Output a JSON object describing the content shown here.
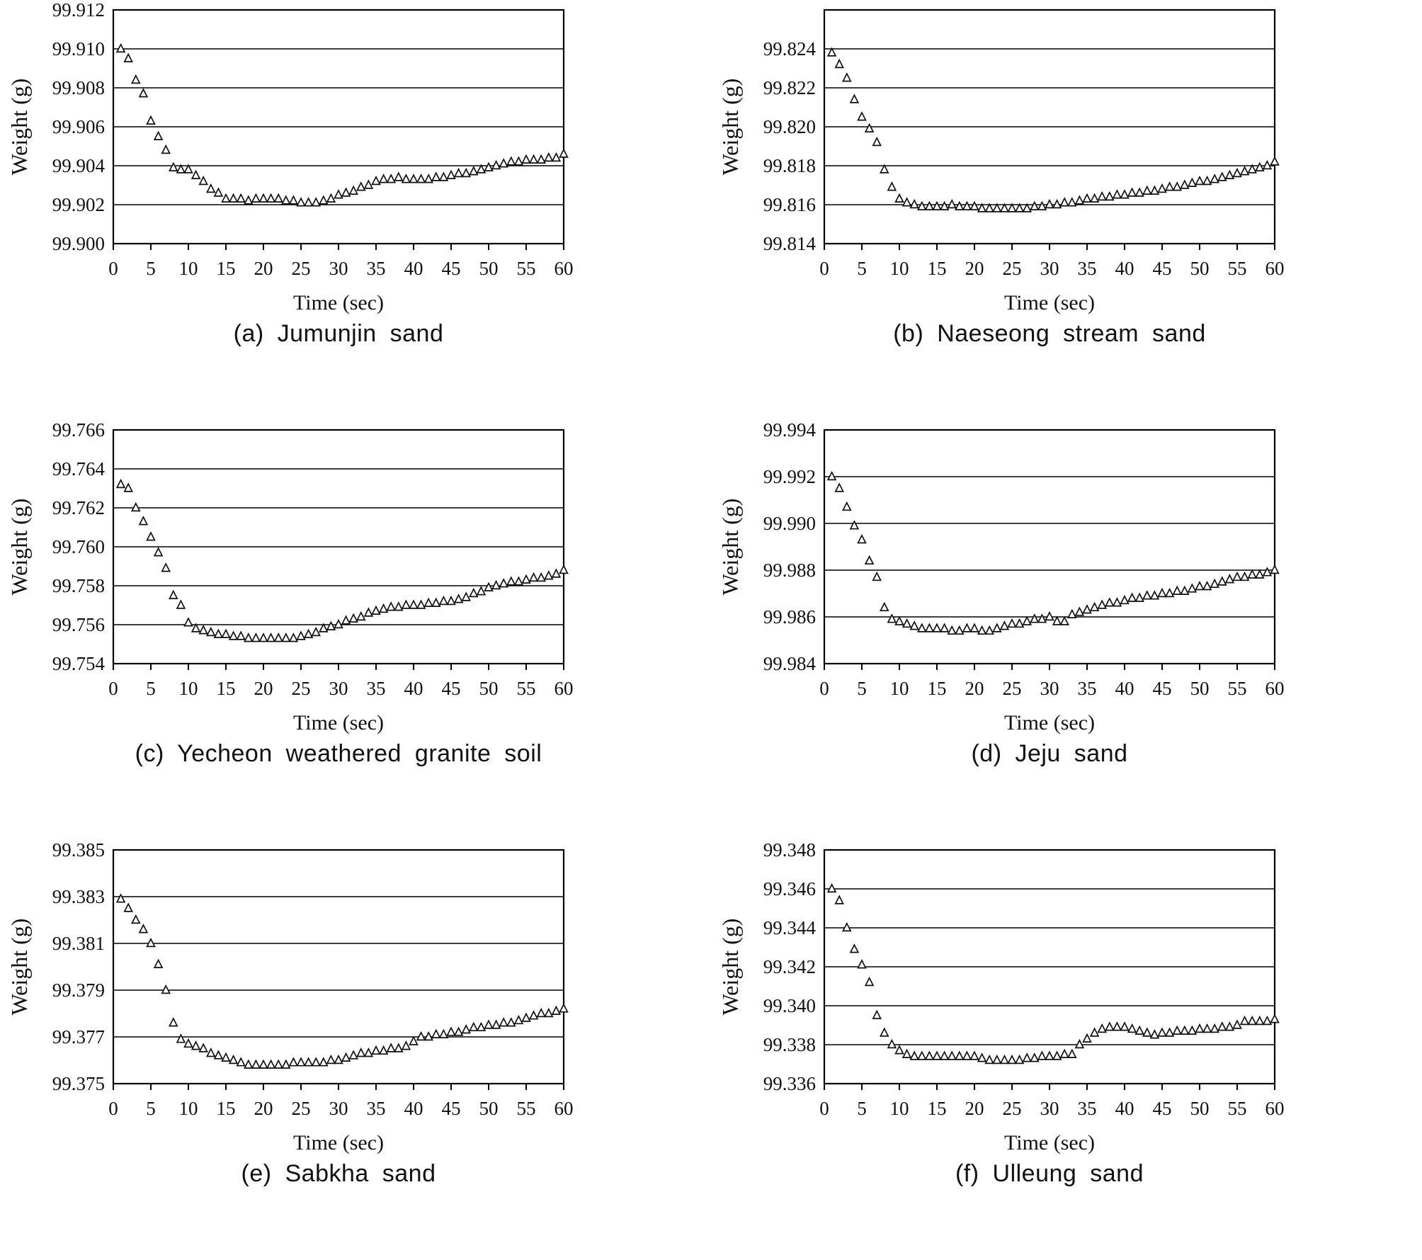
{
  "figure": {
    "layout": {
      "columns": 2,
      "rows": 3,
      "panels": 6
    },
    "marker": "open-triangle",
    "colors": {
      "background": "#ffffff",
      "axis": "#000000",
      "grid": "#000000",
      "marker_stroke": "#111111",
      "text": "#111111"
    }
  },
  "time_seconds": [
    1,
    2,
    3,
    4,
    5,
    6,
    7,
    8,
    9,
    10,
    11,
    12,
    13,
    14,
    15,
    16,
    17,
    18,
    19,
    20,
    21,
    22,
    23,
    24,
    25,
    26,
    27,
    28,
    29,
    30,
    31,
    32,
    33,
    34,
    35,
    36,
    37,
    38,
    39,
    40,
    41,
    42,
    43,
    44,
    45,
    46,
    47,
    48,
    49,
    50,
    51,
    52,
    53,
    54,
    55,
    56,
    57,
    58,
    59,
    60
  ],
  "chart_data": [
    {
      "id": "a",
      "type": "scatter",
      "caption": "(a) Jumunjin sand",
      "xlabel": "Time (sec)",
      "ylabel": "Weight (g)",
      "xlim": [
        0,
        60
      ],
      "x_ticks": [
        0,
        5,
        10,
        15,
        20,
        25,
        30,
        35,
        40,
        45,
        50,
        55,
        60
      ],
      "ylim": [
        99.9,
        99.912
      ],
      "y_ticks": [
        "99.900",
        "99.902",
        "99.904",
        "99.906",
        "99.908",
        "99.910",
        "99.912"
      ],
      "grid": "horizontal",
      "values": [
        99.91,
        99.9095,
        99.9084,
        99.9077,
        99.9063,
        99.9055,
        99.9048,
        99.9039,
        99.9038,
        99.9038,
        99.9035,
        99.9032,
        99.9028,
        99.9026,
        99.9023,
        99.9023,
        99.9023,
        99.9022,
        99.9023,
        99.9023,
        99.9023,
        99.9023,
        99.9022,
        99.9022,
        99.9021,
        99.9021,
        99.9021,
        99.9022,
        99.9023,
        99.9025,
        99.9026,
        99.9027,
        99.9029,
        99.903,
        99.9032,
        99.9033,
        99.9033,
        99.9034,
        99.9033,
        99.9033,
        99.9033,
        99.9033,
        99.9034,
        99.9034,
        99.9035,
        99.9036,
        99.9036,
        99.9037,
        99.9038,
        99.9039,
        99.904,
        99.9041,
        99.9042,
        99.9042,
        99.9043,
        99.9043,
        99.9043,
        99.9044,
        99.9044,
        99.9046
      ]
    },
    {
      "id": "b",
      "type": "scatter",
      "caption": "(b) Naeseong stream sand",
      "xlabel": "Time (sec)",
      "ylabel": "Weight (g)",
      "xlim": [
        0,
        60
      ],
      "x_ticks": [
        0,
        5,
        10,
        15,
        20,
        25,
        30,
        35,
        40,
        45,
        50,
        55,
        60
      ],
      "ylim": [
        99.814,
        99.826
      ],
      "y_ticks": [
        "99.814",
        "99.816",
        "99.818",
        "99.820",
        "99.822",
        "99.824"
      ],
      "grid": "horizontal",
      "values": [
        99.8238,
        99.8232,
        99.8225,
        99.8214,
        99.8205,
        99.8199,
        99.8192,
        99.8178,
        99.8169,
        99.8163,
        99.8161,
        99.816,
        99.8159,
        99.8159,
        99.8159,
        99.8159,
        99.816,
        99.8159,
        99.8159,
        99.8159,
        99.8158,
        99.8158,
        99.8158,
        99.8158,
        99.8158,
        99.8158,
        99.8158,
        99.8159,
        99.8159,
        99.816,
        99.816,
        99.8161,
        99.8161,
        99.8162,
        99.8163,
        99.8163,
        99.8164,
        99.8164,
        99.8165,
        99.8165,
        99.8166,
        99.8166,
        99.8167,
        99.8167,
        99.8168,
        99.8169,
        99.8169,
        99.817,
        99.8171,
        99.8172,
        99.8172,
        99.8173,
        99.8174,
        99.8175,
        99.8176,
        99.8177,
        99.8178,
        99.8179,
        99.818,
        99.8182
      ]
    },
    {
      "id": "c",
      "type": "scatter",
      "caption": "(c) Yecheon weathered granite soil",
      "xlabel": "Time (sec)",
      "ylabel": "Weight (g)",
      "xlim": [
        0,
        60
      ],
      "x_ticks": [
        0,
        5,
        10,
        15,
        20,
        25,
        30,
        35,
        40,
        45,
        50,
        55,
        60
      ],
      "ylim": [
        99.754,
        99.766
      ],
      "y_ticks": [
        "99.754",
        "99.756",
        "99.758",
        "99.760",
        "99.762",
        "99.764",
        "99.766"
      ],
      "grid": "horizontal",
      "values": [
        99.7632,
        99.763,
        99.762,
        99.7613,
        99.7605,
        99.7597,
        99.7589,
        99.7575,
        99.757,
        99.7561,
        99.7558,
        99.7557,
        99.7556,
        99.7555,
        99.7555,
        99.7554,
        99.7554,
        99.7553,
        99.7553,
        99.7553,
        99.7553,
        99.7553,
        99.7553,
        99.7553,
        99.7554,
        99.7555,
        99.7556,
        99.7558,
        99.7559,
        99.756,
        99.7562,
        99.7563,
        99.7564,
        99.7566,
        99.7567,
        99.7568,
        99.7569,
        99.7569,
        99.757,
        99.757,
        99.757,
        99.7571,
        99.7571,
        99.7572,
        99.7572,
        99.7573,
        99.7574,
        99.7576,
        99.7577,
        99.7579,
        99.758,
        99.7581,
        99.7582,
        99.7582,
        99.7583,
        99.7584,
        99.7584,
        99.7585,
        99.7586,
        99.7588
      ]
    },
    {
      "id": "d",
      "type": "scatter",
      "caption": "(d) Jeju sand",
      "xlabel": "Time (sec)",
      "ylabel": "Weight (g)",
      "xlim": [
        0,
        60
      ],
      "x_ticks": [
        0,
        5,
        10,
        15,
        20,
        25,
        30,
        35,
        40,
        45,
        50,
        55,
        60
      ],
      "ylim": [
        99.984,
        99.994
      ],
      "y_ticks": [
        "99.984",
        "99.986",
        "99.988",
        "99.990",
        "99.992",
        "99.994"
      ],
      "grid": "horizontal",
      "values": [
        99.992,
        99.9915,
        99.9907,
        99.9899,
        99.9893,
        99.9884,
        99.9877,
        99.9864,
        99.9859,
        99.9858,
        99.9857,
        99.9856,
        99.9855,
        99.9855,
        99.9855,
        99.9855,
        99.9854,
        99.9854,
        99.9855,
        99.9855,
        99.9854,
        99.9854,
        99.9855,
        99.9856,
        99.9857,
        99.9857,
        99.9858,
        99.9859,
        99.9859,
        99.986,
        99.9858,
        99.9858,
        99.9861,
        99.9862,
        99.9863,
        99.9864,
        99.9865,
        99.9866,
        99.9866,
        99.9867,
        99.9868,
        99.9868,
        99.9869,
        99.9869,
        99.987,
        99.987,
        99.9871,
        99.9871,
        99.9872,
        99.9873,
        99.9873,
        99.9874,
        99.9875,
        99.9876,
        99.9877,
        99.9877,
        99.9878,
        99.9878,
        99.9879,
        99.988
      ]
    },
    {
      "id": "e",
      "type": "scatter",
      "caption": "(e) Sabkha sand",
      "xlabel": "Time (sec)",
      "ylabel": "Weight (g)",
      "xlim": [
        0,
        60
      ],
      "x_ticks": [
        0,
        5,
        10,
        15,
        20,
        25,
        30,
        35,
        40,
        45,
        50,
        55,
        60
      ],
      "ylim": [
        99.375,
        99.385
      ],
      "y_ticks": [
        "99.375",
        "99.377",
        "99.379",
        "99.381",
        "99.383",
        "99.385"
      ],
      "grid": "horizontal",
      "values": [
        99.3829,
        99.3825,
        99.382,
        99.3816,
        99.381,
        99.3801,
        99.379,
        99.3776,
        99.3769,
        99.3767,
        99.3766,
        99.3765,
        99.3763,
        99.3762,
        99.3761,
        99.376,
        99.3759,
        99.3758,
        99.3758,
        99.3758,
        99.3758,
        99.3758,
        99.3758,
        99.3759,
        99.3759,
        99.3759,
        99.3759,
        99.3759,
        99.376,
        99.376,
        99.3761,
        99.3762,
        99.3763,
        99.3763,
        99.3764,
        99.3764,
        99.3765,
        99.3765,
        99.3766,
        99.3768,
        99.377,
        99.377,
        99.3771,
        99.3771,
        99.3772,
        99.3772,
        99.3773,
        99.3774,
        99.3774,
        99.3775,
        99.3775,
        99.3776,
        99.3776,
        99.3777,
        99.3778,
        99.3779,
        99.378,
        99.378,
        99.3781,
        99.3782
      ]
    },
    {
      "id": "f",
      "type": "scatter",
      "caption": "(f) Ulleung sand",
      "xlabel": "Time (sec)",
      "ylabel": "Weight (g)",
      "xlim": [
        0,
        60
      ],
      "x_ticks": [
        0,
        5,
        10,
        15,
        20,
        25,
        30,
        35,
        40,
        45,
        50,
        55,
        60
      ],
      "ylim": [
        99.336,
        99.348
      ],
      "y_ticks": [
        "99.336",
        "99.338",
        "99.340",
        "99.342",
        "99.344",
        "99.346",
        "99.348"
      ],
      "grid": "horizontal",
      "values": [
        99.346,
        99.3454,
        99.344,
        99.3429,
        99.3421,
        99.3412,
        99.3395,
        99.3386,
        99.338,
        99.3377,
        99.3375,
        99.3374,
        99.3374,
        99.3374,
        99.3374,
        99.3374,
        99.3374,
        99.3374,
        99.3374,
        99.3374,
        99.3373,
        99.3372,
        99.3372,
        99.3372,
        99.3372,
        99.3372,
        99.3373,
        99.3373,
        99.3374,
        99.3374,
        99.3374,
        99.3375,
        99.3375,
        99.338,
        99.3383,
        99.3386,
        99.3388,
        99.3389,
        99.3389,
        99.3389,
        99.3388,
        99.3387,
        99.3386,
        99.3385,
        99.3386,
        99.3386,
        99.3387,
        99.3387,
        99.3387,
        99.3388,
        99.3388,
        99.3388,
        99.3389,
        99.3389,
        99.339,
        99.3392,
        99.3392,
        99.3392,
        99.3392,
        99.3393
      ]
    }
  ]
}
